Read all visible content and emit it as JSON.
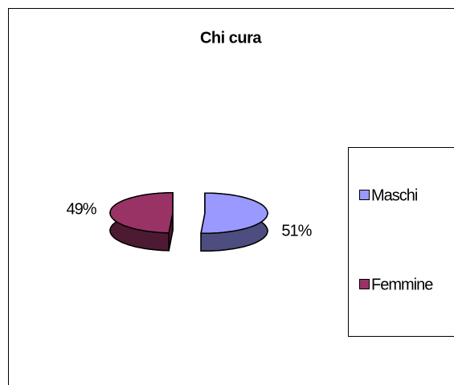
{
  "chart_data": {
    "type": "pie",
    "title": "Chi cura",
    "categories": [
      "Maschi",
      "Femmine"
    ],
    "values": [
      51,
      49
    ],
    "value_labels": [
      "51%",
      "49%"
    ],
    "colors": [
      "#9999ff",
      "#993366"
    ],
    "legend": "right"
  }
}
